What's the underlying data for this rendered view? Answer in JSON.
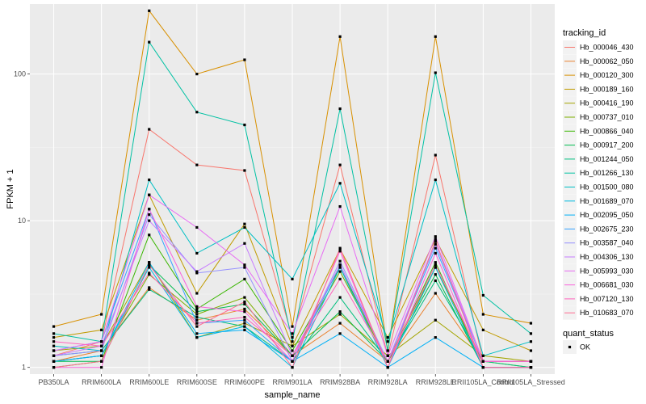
{
  "chart_data": {
    "type": "line",
    "xlabel": "sample_name",
    "ylabel": "FPKM + 1",
    "y_scale": "log10",
    "ylim": [
      0.9,
      300
    ],
    "y_ticks": [
      {
        "value": 1,
        "label": "1"
      },
      {
        "value": 10,
        "label": "10"
      },
      {
        "value": 100,
        "label": "100"
      }
    ],
    "grid": true,
    "legend_position": "right",
    "categories": [
      "PB350LA",
      "RRIM600LA",
      "RRIM600LE",
      "RRIM600SE",
      "RRIM600PE",
      "RRIM901LA",
      "RRIM928BA",
      "RRIM928LA",
      "RRIM928LE",
      "RRII105LA_Control",
      "RRII105LA_Stressed"
    ],
    "color_legend_title": "tracking_id",
    "shape_legend_title": "quant_status",
    "shape_legend_items": [
      "OK"
    ],
    "series": [
      {
        "name": "Hb_000046_430",
        "color": "#F8766D",
        "values": [
          1.2,
          1.5,
          42,
          24,
          22,
          1.6,
          24,
          1.2,
          28,
          1.1,
          1.1
        ]
      },
      {
        "name": "Hb_000062_050",
        "color": "#EA8331",
        "values": [
          1.1,
          1.3,
          3.5,
          2.1,
          2.5,
          1.2,
          2.0,
          1.1,
          3.2,
          1.1,
          1.1
        ]
      },
      {
        "name": "Hb_000120_300",
        "color": "#D89000",
        "values": [
          1.9,
          2.3,
          270,
          100,
          125,
          1.9,
          180,
          1.3,
          180,
          2.3,
          2.0
        ]
      },
      {
        "name": "Hb_000189_160",
        "color": "#C09B00",
        "values": [
          1.6,
          1.8,
          15,
          3.2,
          9.5,
          1.4,
          6.4,
          1.6,
          7.5,
          1.8,
          1.3
        ]
      },
      {
        "name": "Hb_000416_190",
        "color": "#A3A500",
        "values": [
          1.3,
          1.4,
          5.2,
          1.6,
          2.0,
          1.4,
          2.3,
          1.2,
          2.1,
          1.2,
          1.1
        ]
      },
      {
        "name": "Hb_000737_010",
        "color": "#7CAE00",
        "values": [
          1.1,
          1.2,
          4.3,
          2.3,
          3.0,
          1.2,
          4.5,
          1.1,
          4.8,
          1.1,
          1.0
        ]
      },
      {
        "name": "Hb_000866_040",
        "color": "#39B600",
        "values": [
          1.0,
          1.1,
          8.0,
          2.5,
          4.0,
          1.3,
          4.8,
          1.1,
          5.2,
          1.0,
          1.0
        ]
      },
      {
        "name": "Hb_000917_200",
        "color": "#00BB4E",
        "values": [
          1.1,
          1.1,
          5.0,
          2.4,
          2.7,
          1.2,
          2.4,
          1.1,
          4.3,
          1.0,
          1.0
        ]
      },
      {
        "name": "Hb_001244_050",
        "color": "#00BF7D",
        "values": [
          1.2,
          1.3,
          3.4,
          2.2,
          1.9,
          1.1,
          3.0,
          1.1,
          3.9,
          1.1,
          1.0
        ]
      },
      {
        "name": "Hb_001266_130",
        "color": "#00C1A3",
        "values": [
          1.7,
          1.5,
          165,
          55,
          45,
          1.5,
          58,
          1.3,
          102,
          3.1,
          1.7
        ]
      },
      {
        "name": "Hb_001500_080",
        "color": "#00BFC4",
        "values": [
          1.4,
          1.3,
          19,
          6.0,
          9.0,
          4.0,
          18,
          1.5,
          19,
          1.2,
          1.5
        ]
      },
      {
        "name": "Hb_001689_070",
        "color": "#00BAE0",
        "values": [
          1.1,
          1.2,
          4.8,
          1.6,
          1.9,
          1.0,
          4.8,
          1.0,
          4.8,
          1.0,
          1.0
        ]
      },
      {
        "name": "Hb_002095_050",
        "color": "#00B0F6",
        "values": [
          1.1,
          1.2,
          5.2,
          1.7,
          1.8,
          1.1,
          1.7,
          1.0,
          1.6,
          1.0,
          1.0
        ]
      },
      {
        "name": "Hb_002675_230",
        "color": "#35A2FF",
        "values": [
          1.3,
          1.5,
          12,
          2.0,
          2.1,
          1.1,
          5.0,
          1.1,
          6.5,
          1.1,
          1.1
        ]
      },
      {
        "name": "Hb_003587_040",
        "color": "#9590FF",
        "values": [
          1.2,
          1.3,
          11,
          4.4,
          4.8,
          1.1,
          5.3,
          1.1,
          6.9,
          1.1,
          1.1
        ]
      },
      {
        "name": "Hb_004306_130",
        "color": "#C77CFF",
        "values": [
          1.2,
          1.4,
          10,
          4.5,
          7.0,
          1.2,
          5.0,
          1.1,
          7.2,
          1.1,
          1.1
        ]
      },
      {
        "name": "Hb_005993_030",
        "color": "#E76BF3",
        "values": [
          1.3,
          1.5,
          15,
          9.0,
          5.0,
          1.7,
          12.5,
          1.2,
          7.8,
          1.1,
          1.1
        ]
      },
      {
        "name": "Hb_006681_030",
        "color": "#FA62DB",
        "values": [
          1.0,
          1.0,
          12,
          2.6,
          2.4,
          1.1,
          6.2,
          1.0,
          6.0,
          1.0,
          1.0
        ]
      },
      {
        "name": "Hb_007120_130",
        "color": "#FF62BC",
        "values": [
          1.5,
          1.4,
          4.4,
          2.0,
          2.2,
          1.2,
          4.0,
          1.1,
          5.0,
          1.1,
          1.1
        ]
      },
      {
        "name": "Hb_010683_070",
        "color": "#FF6C91",
        "values": [
          1.0,
          1.1,
          5.0,
          1.9,
          2.8,
          1.0,
          6.5,
          1.0,
          7.3,
          1.0,
          1.0
        ]
      }
    ]
  }
}
